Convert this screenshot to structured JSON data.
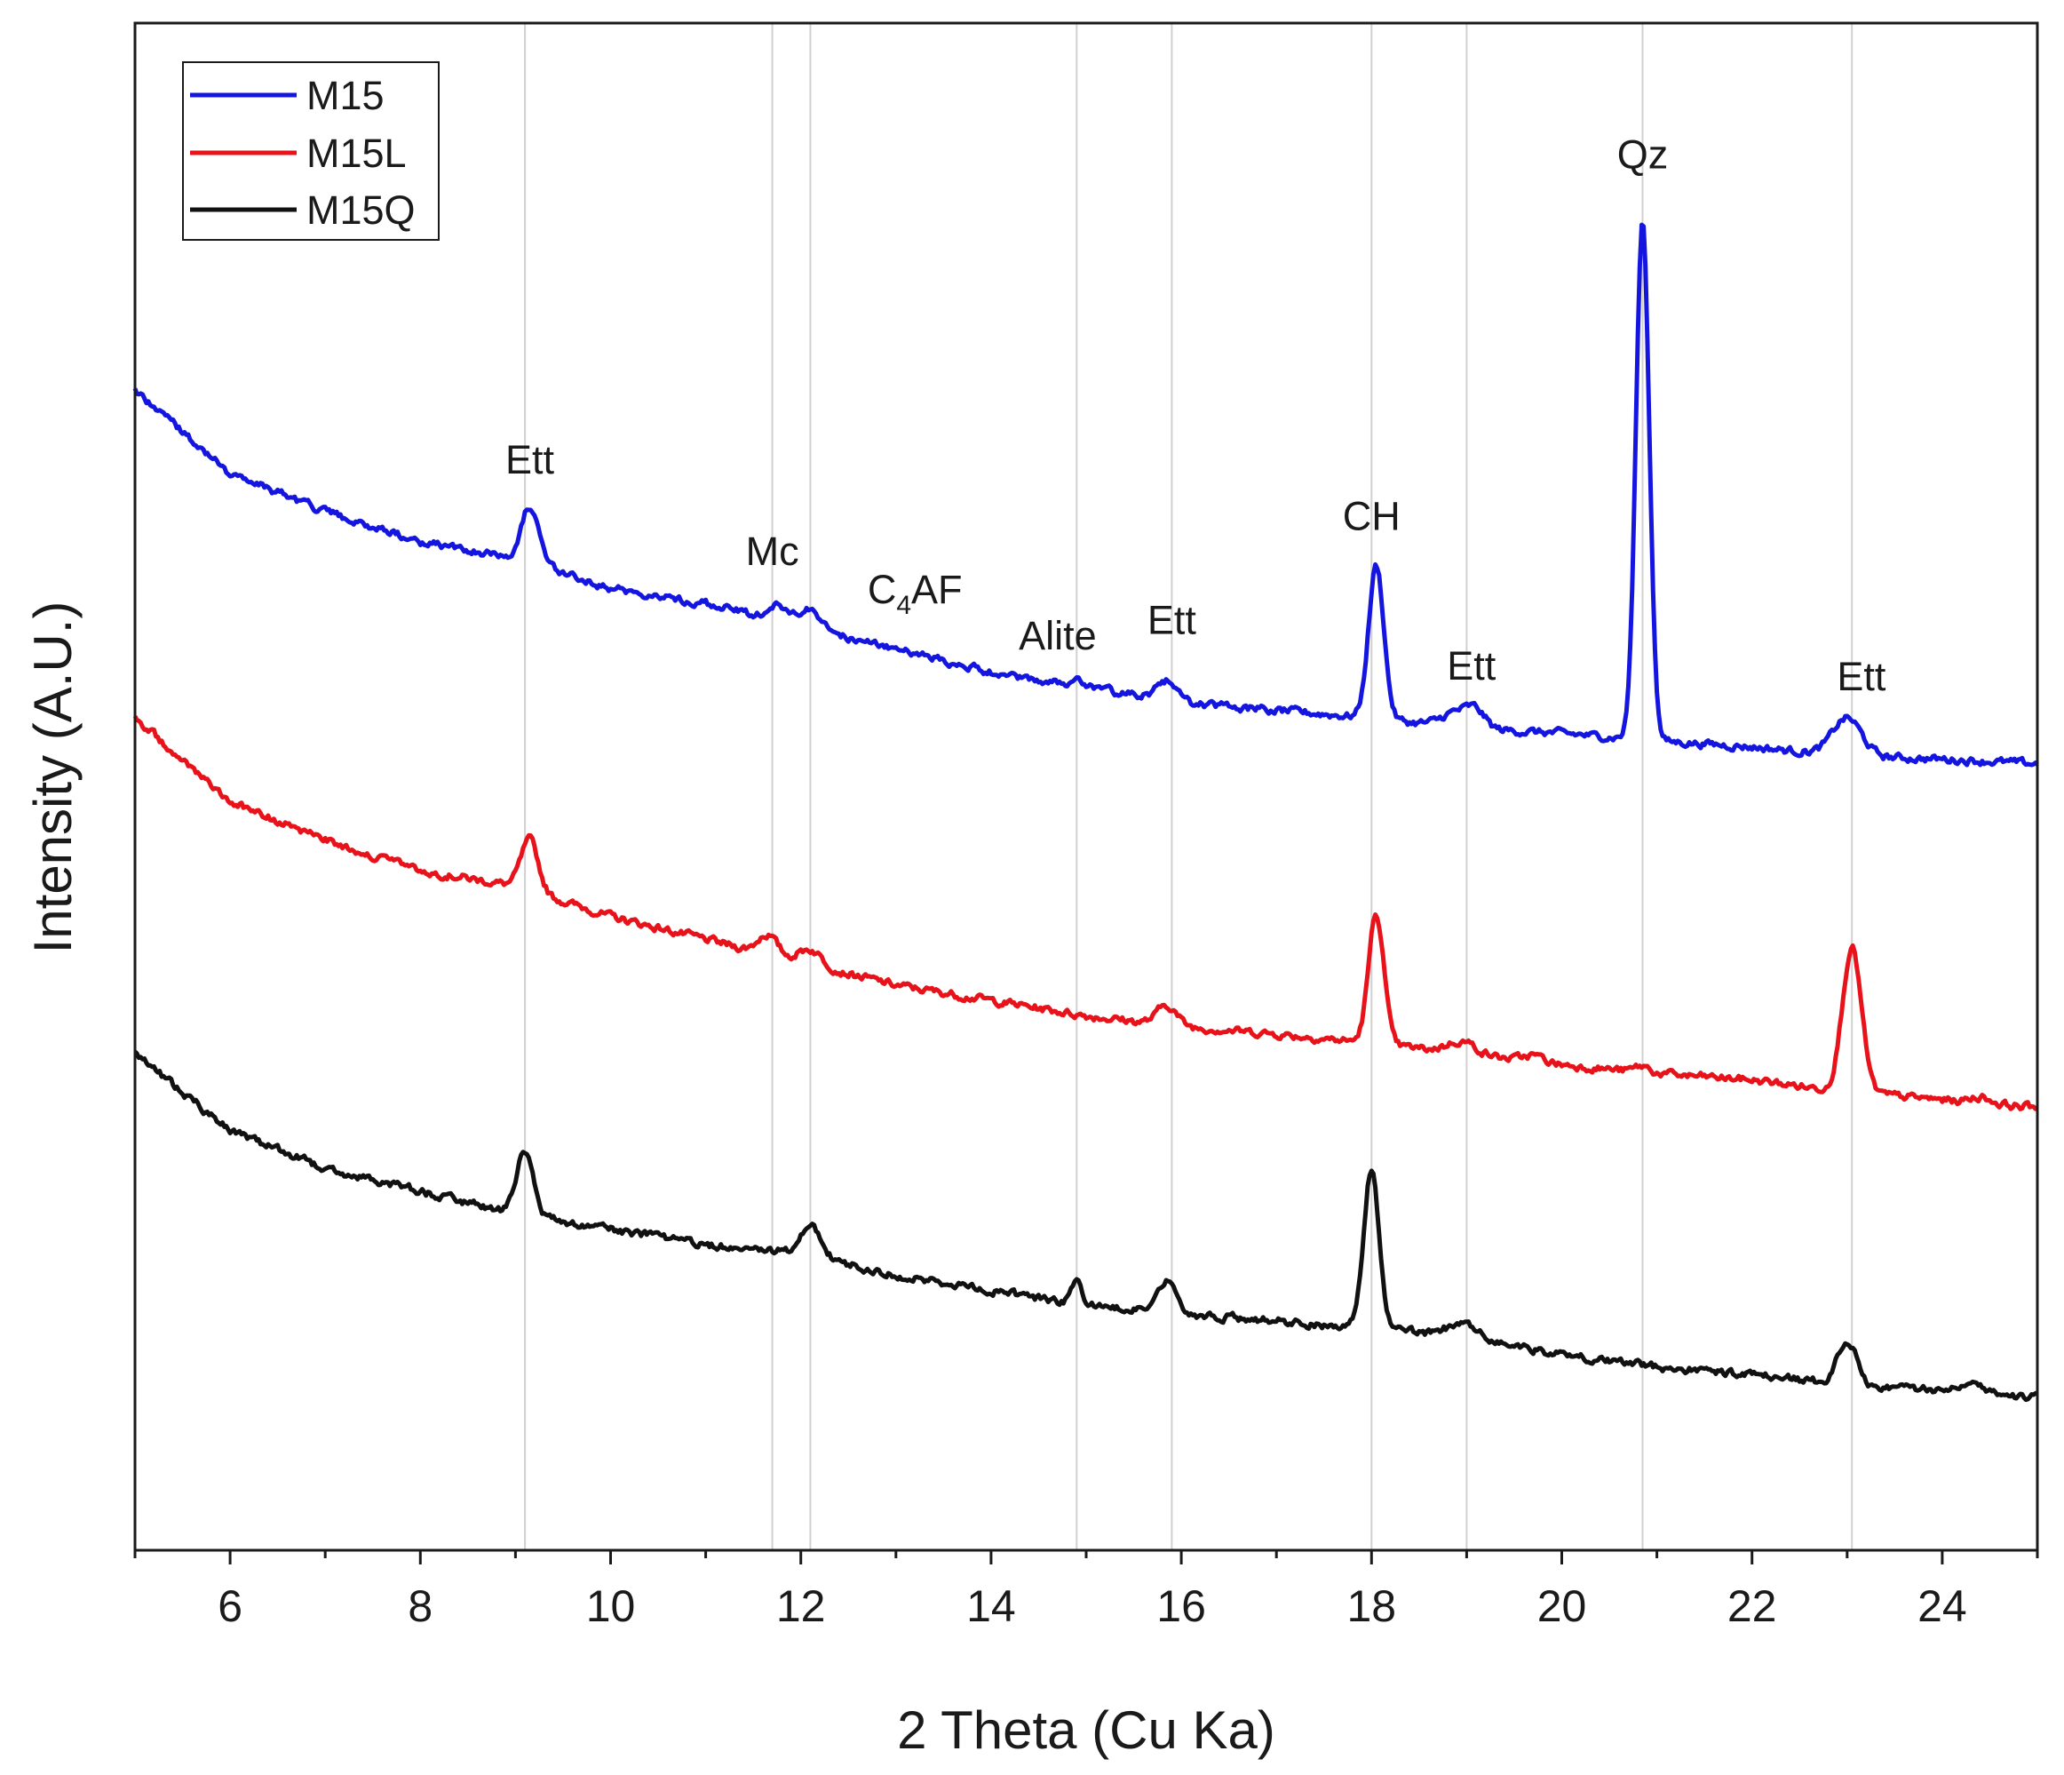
{
  "chart_data": {
    "type": "line",
    "title": "",
    "xlabel": "2 Theta (Cu Ka)",
    "ylabel": "Intensity (A.U.)",
    "xlim": [
      5,
      25
    ],
    "ylim": [
      0,
      100
    ],
    "x_ticks": [
      "6",
      "8",
      "10",
      "12",
      "14",
      "16",
      "18",
      "20",
      "22",
      "24"
    ],
    "y_ticks": [],
    "grid": false,
    "legend_position": "top-left",
    "reference_lines_2theta": [
      9.1,
      11.7,
      12.1,
      14.9,
      15.9,
      18.0,
      19.0,
      20.85,
      23.05
    ],
    "annotations": [
      {
        "label": "Ett",
        "sub": "",
        "tail": "",
        "x": 9.15,
        "y": 70.5
      },
      {
        "label": "Mc",
        "sub": "",
        "tail": "",
        "x": 11.7,
        "y": 64.5
      },
      {
        "label": "C",
        "sub": "4",
        "tail": "AF",
        "x": 13.2,
        "y": 62.0
      },
      {
        "label": "Alite",
        "sub": "",
        "tail": "",
        "x": 14.7,
        "y": 59.0
      },
      {
        "label": "Ett",
        "sub": "",
        "tail": "",
        "x": 15.9,
        "y": 60.0
      },
      {
        "label": "CH",
        "sub": "",
        "tail": "",
        "x": 18.0,
        "y": 66.8
      },
      {
        "label": "Ett",
        "sub": "",
        "tail": "",
        "x": 19.05,
        "y": 57.0
      },
      {
        "label": "Qz",
        "sub": "",
        "tail": "",
        "x": 20.85,
        "y": 90.5
      },
      {
        "label": "Ett",
        "sub": "",
        "tail": "",
        "x": 23.15,
        "y": 56.3
      }
    ],
    "series": [
      {
        "name": "M15",
        "color": "#1515e0",
        "baseline": [
          [
            5.0,
            76.0
          ],
          [
            6.0,
            70.5
          ],
          [
            7.0,
            68.0
          ],
          [
            8.0,
            66.0
          ],
          [
            9.0,
            65.0
          ],
          [
            10.0,
            63.0
          ],
          [
            11.0,
            62.0
          ],
          [
            12.0,
            60.5
          ],
          [
            13.0,
            59.0
          ],
          [
            14.0,
            57.5
          ],
          [
            15.0,
            56.5
          ],
          [
            16.0,
            55.5
          ],
          [
            17.0,
            55.0
          ],
          [
            18.0,
            54.5
          ],
          [
            19.0,
            53.8
          ],
          [
            20.0,
            53.5
          ],
          [
            21.0,
            53.0
          ],
          [
            22.0,
            52.6
          ],
          [
            23.0,
            52.0
          ],
          [
            24.0,
            51.8
          ],
          [
            25.0,
            51.5
          ]
        ],
        "peaks": [
          [
            9.15,
            3.6,
            0.09
          ],
          [
            11.75,
            1.0,
            0.1
          ],
          [
            12.1,
            1.2,
            0.12
          ],
          [
            14.9,
            0.4,
            0.05
          ],
          [
            15.85,
            1.3,
            0.1
          ],
          [
            18.05,
            10.0,
            0.08
          ],
          [
            18.9,
            1.0,
            0.15
          ],
          [
            19.1,
            1.0,
            0.1
          ],
          [
            20.85,
            34.0,
            0.07
          ],
          [
            23.0,
            2.5,
            0.15
          ]
        ]
      },
      {
        "name": "M15L",
        "color": "#e8131a",
        "baseline": [
          [
            5.0,
            54.5
          ],
          [
            6.0,
            49.0
          ],
          [
            7.0,
            46.5
          ],
          [
            8.0,
            44.5
          ],
          [
            9.0,
            43.5
          ],
          [
            10.0,
            41.5
          ],
          [
            11.0,
            40.0
          ],
          [
            12.0,
            38.5
          ],
          [
            13.0,
            37.0
          ],
          [
            14.0,
            36.0
          ],
          [
            15.0,
            35.0
          ],
          [
            16.0,
            34.3
          ],
          [
            17.0,
            33.8
          ],
          [
            18.0,
            33.2
          ],
          [
            19.0,
            32.5
          ],
          [
            20.0,
            31.8
          ],
          [
            21.0,
            31.2
          ],
          [
            22.0,
            30.8
          ],
          [
            23.0,
            30.0
          ],
          [
            24.0,
            29.5
          ],
          [
            25.0,
            29.0
          ]
        ],
        "peaks": [
          [
            9.15,
            3.3,
            0.09
          ],
          [
            11.65,
            1.3,
            0.1
          ],
          [
            12.1,
            1.0,
            0.12
          ],
          [
            15.85,
            1.3,
            0.1
          ],
          [
            18.05,
            8.5,
            0.08
          ],
          [
            18.95,
            0.8,
            0.15
          ],
          [
            19.7,
            0.4,
            0.1
          ],
          [
            20.85,
            0.4,
            0.08
          ],
          [
            23.05,
            9.5,
            0.1
          ],
          [
            24.4,
            0.4,
            0.1
          ]
        ]
      },
      {
        "name": "M15Q",
        "color": "#111111",
        "baseline": [
          [
            5.0,
            32.5
          ],
          [
            6.0,
            27.5
          ],
          [
            7.0,
            25.0
          ],
          [
            8.0,
            23.5
          ],
          [
            9.0,
            22.0
          ],
          [
            10.0,
            21.0
          ],
          [
            11.0,
            20.0
          ],
          [
            12.0,
            19.5
          ],
          [
            13.0,
            18.0
          ],
          [
            14.0,
            17.0
          ],
          [
            15.0,
            16.0
          ],
          [
            16.0,
            15.5
          ],
          [
            17.0,
            15.0
          ],
          [
            18.0,
            14.5
          ],
          [
            19.0,
            14.0
          ],
          [
            20.0,
            12.8
          ],
          [
            21.0,
            12.0
          ],
          [
            22.0,
            11.5
          ],
          [
            23.0,
            10.8
          ],
          [
            24.0,
            10.5
          ],
          [
            25.0,
            10.0
          ]
        ],
        "peaks": [
          [
            9.1,
            4.2,
            0.09
          ],
          [
            12.1,
            2.0,
            0.1
          ],
          [
            14.9,
            1.3,
            0.06
          ],
          [
            15.85,
            2.2,
            0.1
          ],
          [
            18.0,
            10.5,
            0.08
          ],
          [
            18.95,
            0.8,
            0.15
          ],
          [
            23.0,
            3.0,
            0.1
          ],
          [
            24.3,
            0.8,
            0.12
          ]
        ]
      }
    ]
  }
}
